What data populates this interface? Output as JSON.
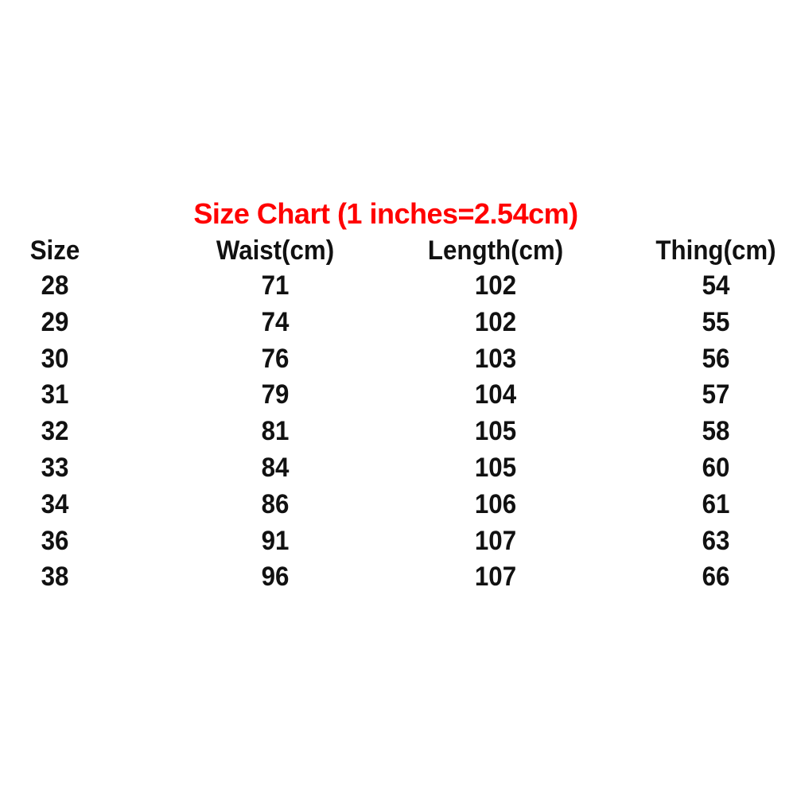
{
  "chart_data": {
    "type": "table",
    "title": "Size Chart (1 inches=2.54cm)",
    "title_color": "#ff0000",
    "columns": [
      "Size",
      "Waist(cm)",
      "Length(cm)",
      "Thing(cm)"
    ],
    "rows": [
      [
        "28",
        "71",
        "102",
        "54"
      ],
      [
        "29",
        "74",
        "102",
        "55"
      ],
      [
        "30",
        "76",
        "103",
        "56"
      ],
      [
        "31",
        "79",
        "104",
        "57"
      ],
      [
        "32",
        "81",
        "105",
        "58"
      ],
      [
        "33",
        "84",
        "105",
        "60"
      ],
      [
        "34",
        "86",
        "106",
        "61"
      ],
      [
        "36",
        "91",
        "107",
        "63"
      ],
      [
        "38",
        "96",
        "107",
        "66"
      ]
    ]
  }
}
